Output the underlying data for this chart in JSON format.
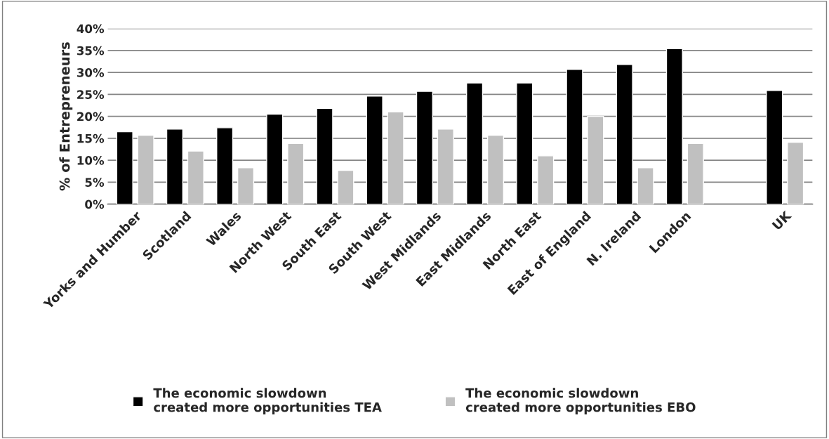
{
  "chart_data": {
    "type": "bar",
    "ylabel": "% of Entrepreneurs",
    "categories": [
      "Yorks and Humber",
      "Scotland",
      "Wales",
      "North West",
      "South East",
      "South West",
      "West Midlands",
      "East Midlands",
      "North East",
      "East of England",
      "N. Ireland",
      "London",
      null,
      "UK"
    ],
    "series": [
      {
        "name": "The economic slowdown\ncreated more opportunities TEA",
        "color": "#000000",
        "values": [
          16.5,
          17.1,
          17.4,
          20.5,
          21.8,
          24.6,
          25.7,
          27.6,
          27.6,
          30.7,
          31.8,
          35.4,
          null,
          25.9
        ]
      },
      {
        "name": "The economic slowdown\ncreated more opportunities EBO",
        "color": "#c0c0c0",
        "values": [
          15.7,
          12.1,
          8.3,
          13.8,
          7.7,
          21.0,
          17.1,
          15.7,
          11.0,
          20.0,
          8.3,
          13.8,
          null,
          14.1
        ]
      }
    ],
    "ylim": [
      0,
      40
    ],
    "yticks": [
      {
        "value": 0,
        "label": "0%"
      },
      {
        "value": 5,
        "label": "5%"
      },
      {
        "value": 10,
        "label": "10%"
      },
      {
        "value": 15,
        "label": "15%"
      },
      {
        "value": 20,
        "label": "20%"
      },
      {
        "value": 25,
        "label": "25%"
      },
      {
        "value": 30,
        "label": "30%"
      },
      {
        "value": 35,
        "label": "35%"
      },
      {
        "value": 40,
        "label": "40%"
      }
    ],
    "grid": "y",
    "legend": "bottom"
  }
}
